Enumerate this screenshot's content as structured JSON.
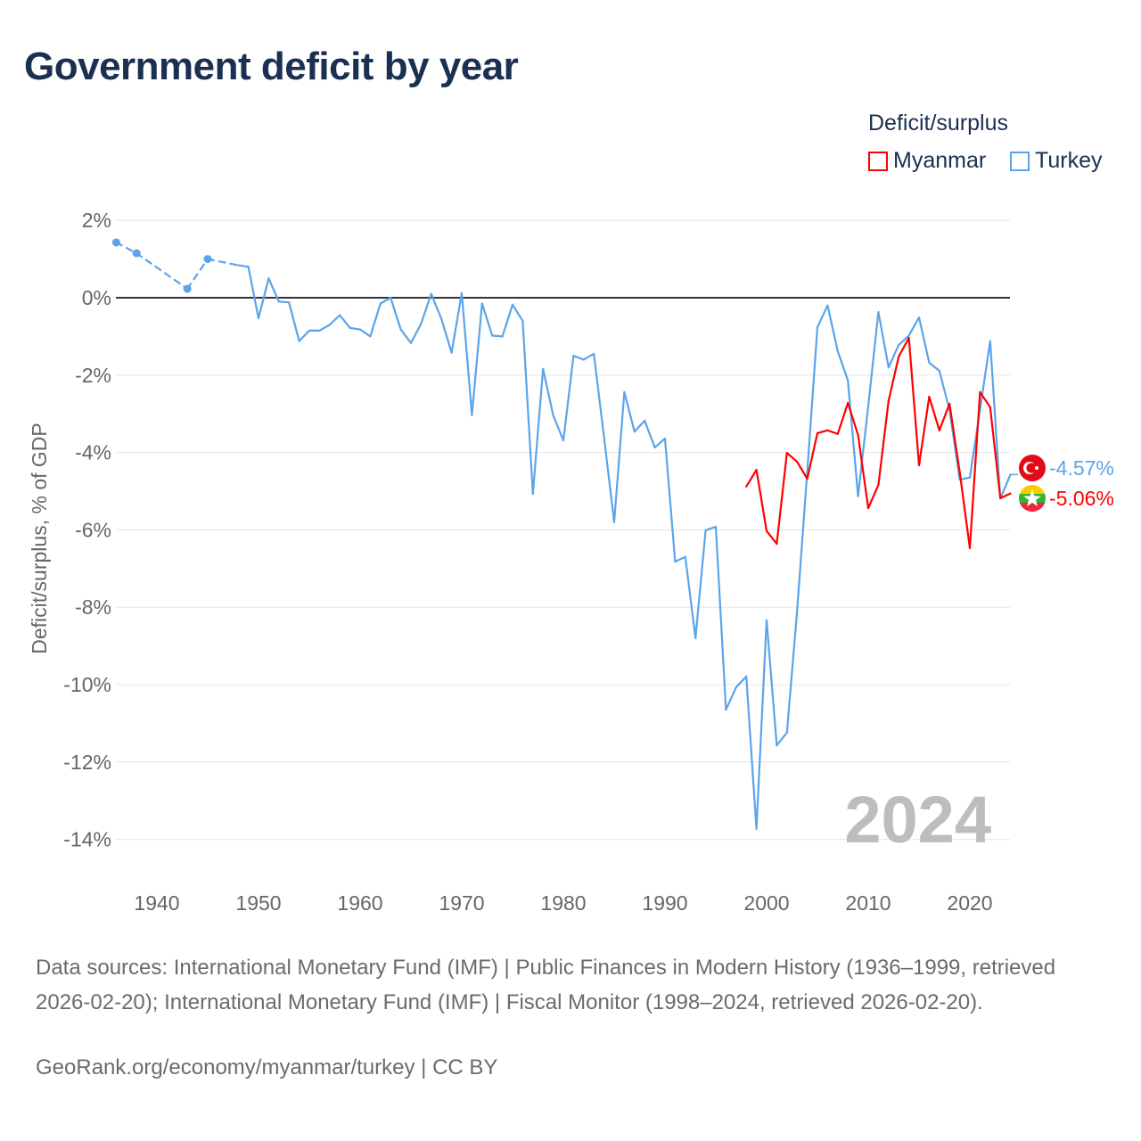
{
  "title": "Government deficit by year",
  "legend": {
    "title": "Deficit/surplus",
    "items": [
      {
        "label": "Myanmar",
        "color": "#ff0000"
      },
      {
        "label": "Turkey",
        "color": "#5ba4ea"
      }
    ]
  },
  "chart_data": {
    "type": "line",
    "title": "Government deficit by year",
    "xlabel": "",
    "ylabel": "Deficit/surplus, % of GDP",
    "xlim": [
      1936,
      2024
    ],
    "ylim": [
      -14,
      2
    ],
    "x_ticks": [
      1940,
      1950,
      1960,
      1970,
      1980,
      1990,
      2000,
      2010,
      2020
    ],
    "y_ticks": [
      2,
      0,
      -2,
      -4,
      -6,
      -8,
      -10,
      -12,
      -14
    ],
    "y_tick_labels": [
      "2%",
      "0%",
      "-2%",
      "-4%",
      "-6%",
      "-8%",
      "-10%",
      "-12%",
      "-14%"
    ],
    "x_tick_labels": [
      "1940",
      "1950",
      "1960",
      "1970",
      "1980",
      "1990",
      "2000",
      "2010",
      "2020"
    ],
    "grid": true,
    "legend_position": "top-right",
    "current_year_label": "2024",
    "series": [
      {
        "name": "Turkey",
        "color": "#5ba4ea",
        "end_label": "-4.57%",
        "x": [
          1936,
          1938,
          1943,
          1945,
          1948,
          1949,
          1950,
          1951,
          1952,
          1953,
          1954,
          1955,
          1956,
          1957,
          1958,
          1959,
          1960,
          1961,
          1962,
          1963,
          1964,
          1965,
          1966,
          1967,
          1968,
          1969,
          1970,
          1971,
          1972,
          1973,
          1974,
          1975,
          1976,
          1977,
          1978,
          1979,
          1980,
          1981,
          1982,
          1983,
          1984,
          1985,
          1986,
          1987,
          1988,
          1989,
          1990,
          1991,
          1992,
          1993,
          1994,
          1995,
          1996,
          1997,
          1998,
          1999,
          2000,
          2001,
          2002,
          2003,
          2004,
          2005,
          2006,
          2007,
          2008,
          2009,
          2010,
          2011,
          2012,
          2013,
          2014,
          2015,
          2016,
          2017,
          2018,
          2019,
          2020,
          2021,
          2022,
          2023,
          2024
        ],
        "values": [
          1.43,
          1.15,
          0.23,
          1.0,
          0.84,
          0.8,
          -0.53,
          0.5,
          -0.1,
          -0.12,
          -1.12,
          -0.85,
          -0.85,
          -0.7,
          -0.45,
          -0.78,
          -0.82,
          -1.0,
          -0.15,
          0.0,
          -0.82,
          -1.17,
          -0.67,
          0.1,
          -0.55,
          -1.42,
          0.12,
          -3.03,
          -0.15,
          -0.98,
          -1.0,
          -0.18,
          -0.6,
          -5.07,
          -1.84,
          -3.04,
          -3.69,
          -1.5,
          -1.6,
          -1.45,
          -3.6,
          -5.8,
          -2.44,
          -3.46,
          -3.18,
          -3.87,
          -3.64,
          -6.82,
          -6.7,
          -8.8,
          -6.01,
          -5.92,
          -10.65,
          -10.07,
          -9.79,
          -13.73,
          -8.34,
          -11.57,
          -11.24,
          -8.1,
          -4.5,
          -0.76,
          -0.2,
          -1.38,
          -2.14,
          -5.13,
          -2.8,
          -0.37,
          -1.8,
          -1.22,
          -0.98,
          -0.51,
          -1.68,
          -1.89,
          -2.9,
          -4.7,
          -4.65,
          -2.9,
          -1.12,
          -5.19,
          -4.57
        ]
      },
      {
        "name": "Myanmar",
        "color": "#ff0000",
        "end_label": "-5.06%",
        "x": [
          1998,
          1999,
          2000,
          2001,
          2002,
          2003,
          2004,
          2005,
          2006,
          2007,
          2008,
          2009,
          2010,
          2011,
          2012,
          2013,
          2014,
          2015,
          2016,
          2017,
          2018,
          2019,
          2020,
          2021,
          2022,
          2023,
          2024
        ],
        "values": [
          -4.88,
          -4.45,
          -6.03,
          -6.36,
          -4.01,
          -4.24,
          -4.68,
          -3.5,
          -3.43,
          -3.52,
          -2.72,
          -3.55,
          -5.44,
          -4.84,
          -2.67,
          -1.52,
          -1.04,
          -4.33,
          -2.56,
          -3.43,
          -2.74,
          -4.5,
          -6.47,
          -2.44,
          -2.83,
          -5.18,
          -5.06
        ]
      }
    ]
  },
  "footer": {
    "sources": "Data sources: International Monetary Fund (IMF) | Public Finances in Modern History (1936–1999, retrieved 2026-02-20); International Monetary Fund (IMF) | Fiscal Monitor (1998–2024, retrieved 2026-02-20).",
    "credit": "GeoRank.org/economy/myanmar/turkey | CC BY"
  }
}
